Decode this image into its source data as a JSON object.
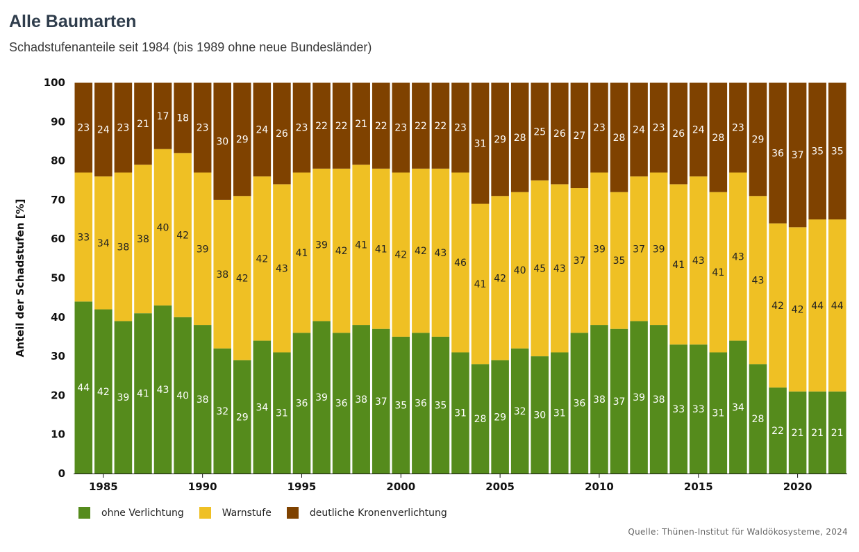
{
  "header": {
    "title": "Alle Baumarten",
    "subtitle": "Schadstufenanteile seit 1984 (bis 1989 ohne neue Bundesländer)"
  },
  "source": "Quelle: Thünen-Institut für Waldökosysteme, 2024",
  "chart_data": {
    "type": "bar",
    "stacked": true,
    "title": "Alle Baumarten",
    "subtitle": "Schadstufenanteile seit 1984 (bis 1989 ohne neue Bundesländer)",
    "xlabel": "",
    "ylabel": "Anteil der Schadstufen [%]",
    "ylim": [
      0,
      100
    ],
    "yticks": [
      0,
      10,
      20,
      30,
      40,
      50,
      60,
      70,
      80,
      90,
      100
    ],
    "xticks": [
      "1985",
      "1990",
      "1995",
      "2000",
      "2005",
      "2010",
      "2015",
      "2020"
    ],
    "grid": false,
    "legend_position": "bottom-left",
    "categories": [
      1984,
      1985,
      1986,
      1987,
      1988,
      1989,
      1990,
      1991,
      1992,
      1993,
      1994,
      1995,
      1996,
      1997,
      1998,
      1999,
      2000,
      2001,
      2002,
      2003,
      2004,
      2005,
      2006,
      2007,
      2008,
      2009,
      2010,
      2011,
      2012,
      2013,
      2014,
      2015,
      2016,
      2017,
      2018,
      2019,
      2020,
      2021,
      2022
    ],
    "series": [
      {
        "name": "ohne Verlichtung",
        "color": "#558b1c",
        "values": [
          44,
          42,
          39,
          41,
          43,
          40,
          38,
          32,
          29,
          34,
          31,
          36,
          39,
          36,
          38,
          37,
          35,
          36,
          35,
          31,
          28,
          29,
          32,
          30,
          31,
          36,
          38,
          37,
          39,
          38,
          33,
          33,
          31,
          34,
          28,
          22,
          21,
          21,
          21
        ]
      },
      {
        "name": "Warnstufe",
        "color": "#efc024",
        "values": [
          33,
          34,
          38,
          38,
          40,
          42,
          39,
          38,
          42,
          42,
          43,
          41,
          39,
          42,
          41,
          41,
          42,
          42,
          43,
          46,
          41,
          42,
          40,
          45,
          43,
          37,
          39,
          35,
          37,
          39,
          41,
          43,
          41,
          43,
          43,
          42,
          42,
          44,
          44
        ]
      },
      {
        "name": "deutliche Kronenverlichtung",
        "color": "#7f4200",
        "values": [
          23,
          24,
          23,
          21,
          17,
          18,
          23,
          30,
          29,
          24,
          26,
          23,
          22,
          22,
          21,
          22,
          23,
          22,
          22,
          23,
          31,
          29,
          28,
          25,
          26,
          27,
          23,
          28,
          24,
          23,
          26,
          24,
          28,
          23,
          29,
          36,
          37,
          35,
          35
        ]
      }
    ]
  }
}
